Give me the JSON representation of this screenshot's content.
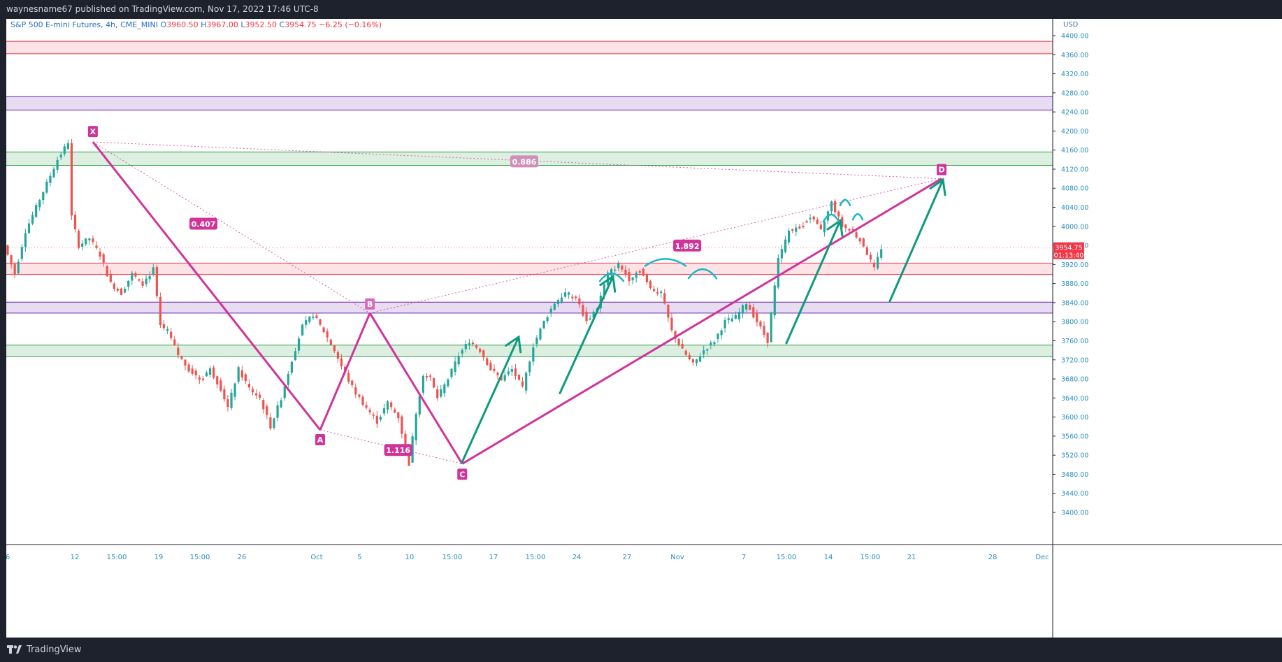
{
  "header": {
    "publish_line": "waynesname67 published on TradingView.com, Nov 17, 2022 17:46 UTC-8"
  },
  "footer": {
    "brand": "TradingView",
    "logo_icon": "tradingview-logo-icon"
  },
  "symbol": {
    "name": "S&P 500 E-mini Futures, 4h, CME_MINI",
    "open_label": "O",
    "open": "3960.50",
    "high_label": "H",
    "high": "3967.00",
    "low_label": "L",
    "low": "3952.50",
    "close_label": "C",
    "close": "3954.75",
    "change": "−6.25 (−0.16%)"
  },
  "colors": {
    "up": "#26a69a",
    "down": "#ef5350",
    "pattern": "#d0349a",
    "arrow": "#0e9a7c",
    "arc": "#19b7c6",
    "zone_red": "#f23645",
    "zone_green": "#2e9e46",
    "zone_purple": "#6a24a8"
  },
  "chart_data": {
    "type": "candlestick",
    "timeframe": "4h",
    "y_axis_unit": "USD",
    "ylim": [
      3360,
      4440
    ],
    "grid": false,
    "y_ticks": [
      4400,
      4360,
      4320,
      4280,
      4240,
      4200,
      4160,
      4120,
      4080,
      4040,
      4000,
      3960,
      3920,
      3880,
      3840,
      3800,
      3760,
      3720,
      3680,
      3640,
      3600,
      3560,
      3520,
      3480,
      3440,
      3400
    ],
    "x_tick_labels": [
      "6",
      "12",
      "15:00",
      "19",
      "15:00",
      "26",
      "Oct",
      "5",
      "10",
      "15:00",
      "17",
      "15:00",
      "24",
      "27",
      "Nov",
      "7",
      "15:00",
      "14",
      "15:00",
      "21",
      "28",
      "Dec"
    ],
    "last_price": "3954.75",
    "countdown": "01:13:40",
    "zones": [
      {
        "type": "resistance",
        "color": "red",
        "low": 4362,
        "high": 4388
      },
      {
        "type": "range",
        "color": "purple",
        "low": 4244,
        "high": 4272
      },
      {
        "type": "support",
        "color": "green",
        "low": 4128,
        "high": 4156
      },
      {
        "type": "resistance",
        "color": "red",
        "low": 3899,
        "high": 3923
      },
      {
        "type": "range",
        "color": "purple",
        "low": 3818,
        "high": 3841
      },
      {
        "type": "support",
        "color": "green",
        "low": 3727,
        "high": 3751
      }
    ],
    "harmonic_pattern": {
      "points": [
        {
          "label": "X",
          "price": 4177
        },
        {
          "label": "A",
          "price": 3573
        },
        {
          "label": "B",
          "price": 3818
        },
        {
          "label": "C",
          "price": 3502
        },
        {
          "label": "D",
          "price": 4100
        }
      ],
      "ratios": [
        {
          "legs": "XA-AB",
          "value": "0.407"
        },
        {
          "legs": "AB-BC",
          "value": "1.116"
        },
        {
          "legs": "BC-CD",
          "value": "1.892"
        },
        {
          "legs": "XA-AD",
          "value": "0.886"
        }
      ]
    },
    "price_path": [
      [
        0,
        3960
      ],
      [
        3,
        3900
      ],
      [
        6,
        3990
      ],
      [
        9,
        4040
      ],
      [
        12,
        4090
      ],
      [
        15,
        4140
      ],
      [
        18,
        4177
      ],
      [
        19,
        4020
      ],
      [
        21,
        3960
      ],
      [
        24,
        3975
      ],
      [
        27,
        3940
      ],
      [
        30,
        3880
      ],
      [
        33,
        3860
      ],
      [
        36,
        3900
      ],
      [
        39,
        3880
      ],
      [
        42,
        3910
      ],
      [
        44,
        3790
      ],
      [
        46,
        3780
      ],
      [
        49,
        3730
      ],
      [
        52,
        3700
      ],
      [
        55,
        3680
      ],
      [
        58,
        3700
      ],
      [
        61,
        3660
      ],
      [
        63,
        3620
      ],
      [
        66,
        3700
      ],
      [
        69,
        3660
      ],
      [
        72,
        3640
      ],
      [
        75,
        3580
      ],
      [
        78,
        3640
      ],
      [
        81,
        3720
      ],
      [
        84,
        3790
      ],
      [
        87,
        3815
      ],
      [
        90,
        3780
      ],
      [
        93,
        3740
      ],
      [
        96,
        3690
      ],
      [
        99,
        3650
      ],
      [
        102,
        3620
      ],
      [
        105,
        3590
      ],
      [
        108,
        3630
      ],
      [
        111,
        3600
      ],
      [
        114,
        3502
      ],
      [
        116,
        3610
      ],
      [
        118,
        3690
      ],
      [
        120,
        3680
      ],
      [
        122,
        3640
      ],
      [
        125,
        3680
      ],
      [
        128,
        3730
      ],
      [
        131,
        3760
      ],
      [
        134,
        3740
      ],
      [
        137,
        3700
      ],
      [
        140,
        3680
      ],
      [
        143,
        3700
      ],
      [
        146,
        3660
      ],
      [
        149,
        3750
      ],
      [
        152,
        3800
      ],
      [
        155,
        3840
      ],
      [
        158,
        3860
      ],
      [
        161,
        3850
      ],
      [
        164,
        3800
      ],
      [
        167,
        3830
      ],
      [
        170,
        3900
      ],
      [
        173,
        3920
      ],
      [
        176,
        3890
      ],
      [
        179,
        3910
      ],
      [
        182,
        3870
      ],
      [
        185,
        3860
      ],
      [
        188,
        3780
      ],
      [
        191,
        3740
      ],
      [
        194,
        3710
      ],
      [
        197,
        3740
      ],
      [
        200,
        3760
      ],
      [
        203,
        3800
      ],
      [
        206,
        3810
      ],
      [
        209,
        3840
      ],
      [
        212,
        3800
      ],
      [
        215,
        3760
      ],
      [
        218,
        3930
      ],
      [
        221,
        3990
      ],
      [
        224,
        4000
      ],
      [
        227,
        4020
      ],
      [
        230,
        3990
      ],
      [
        233,
        4050
      ],
      [
        236,
        4000
      ],
      [
        239,
        3990
      ],
      [
        242,
        3960
      ],
      [
        245,
        3910
      ],
      [
        247,
        3955
      ]
    ],
    "annotations": [
      {
        "type": "projection-arrow",
        "from": 3840,
        "to": 4100
      },
      {
        "type": "impulse-arrows",
        "count": 5
      },
      {
        "type": "trendline",
        "from": "C",
        "to": "D"
      }
    ]
  }
}
